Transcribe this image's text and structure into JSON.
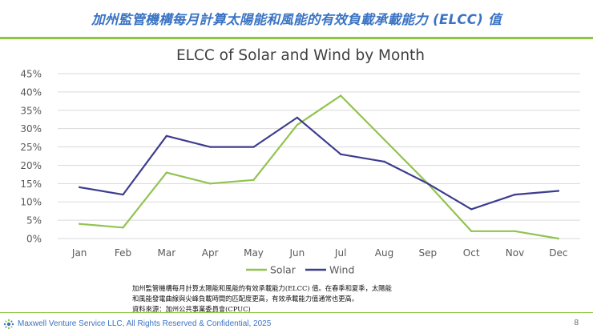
{
  "header": {
    "title": "加州監管機構每月計算太陽能和風能的有效負載承載能力 (ELCC) 值"
  },
  "chart_data": {
    "type": "line",
    "title": "ELCC of Solar and Wind by Month",
    "categories": [
      "Jan",
      "Feb",
      "Mar",
      "Apr",
      "May",
      "Jun",
      "Jul",
      "Aug",
      "Sep",
      "Oct",
      "Nov",
      "Dec"
    ],
    "series": [
      {
        "name": "Solar",
        "color": "#92c351",
        "values": [
          4,
          3,
          18,
          15,
          16,
          31,
          39,
          27,
          15,
          2,
          2,
          0
        ]
      },
      {
        "name": "Wind",
        "color": "#3d3d8f",
        "values": [
          14,
          12,
          28,
          25,
          25,
          33,
          23,
          21,
          15,
          8,
          12,
          13
        ]
      }
    ],
    "ylim": [
      0,
      45
    ],
    "yticks": [
      0,
      5,
      10,
      15,
      20,
      25,
      30,
      35,
      40,
      45
    ],
    "ytick_labels": [
      "0%",
      "5%",
      "10%",
      "15%",
      "20%",
      "25%",
      "30%",
      "35%",
      "40%",
      "45%"
    ],
    "xlabel": "",
    "ylabel": "",
    "grid": true,
    "legend_position": "bottom"
  },
  "note": {
    "line1": "加州監管機構每月計算太陽能和風能的有效承載能力(ELCC) 值。在春季和夏季，太陽能",
    "line2": "和風能發電曲線與尖峰負載時間的匹配度更高，有效承載能力值通常也更高。",
    "line3": "資料來源：加州公共事業委員會(CPUC)"
  },
  "footer": {
    "text": "Maxwell Venture Service LLC, All Rights Reserved & Confidential, 2025",
    "page": "8"
  }
}
